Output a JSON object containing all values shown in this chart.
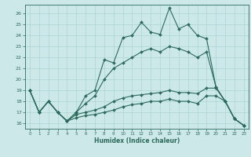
{
  "title": "",
  "xlabel": "Humidex (Indice chaleur)",
  "bg_color": "#cce8e8",
  "grid_color": "#aad4d4",
  "line_color": "#2d6b5e",
  "xlim": [
    -0.5,
    23.5
  ],
  "ylim": [
    15.5,
    26.8
  ],
  "xticks": [
    0,
    1,
    2,
    3,
    4,
    5,
    6,
    7,
    8,
    9,
    10,
    11,
    12,
    13,
    14,
    15,
    16,
    17,
    18,
    19,
    20,
    21,
    22,
    23
  ],
  "yticks": [
    16,
    17,
    18,
    19,
    20,
    21,
    22,
    23,
    24,
    25,
    26
  ],
  "line1_x": [
    0,
    1,
    2,
    3,
    4,
    5,
    6,
    7,
    8,
    9,
    10,
    11,
    12,
    13,
    14,
    15,
    16,
    17,
    18,
    19,
    20,
    21,
    22,
    23
  ],
  "line1_y": [
    19,
    17,
    18,
    17,
    16.2,
    17,
    18.5,
    19.0,
    21.8,
    21.5,
    23.8,
    24.0,
    25.2,
    24.3,
    24.1,
    26.5,
    24.6,
    25.0,
    24.0,
    23.7,
    19.3,
    18.0,
    16.4,
    15.8
  ],
  "line2_x": [
    0,
    1,
    2,
    3,
    4,
    5,
    6,
    7,
    8,
    9,
    10,
    11,
    12,
    13,
    14,
    15,
    16,
    17,
    18,
    19,
    20,
    21,
    22,
    23
  ],
  "line2_y": [
    19,
    17,
    18,
    17,
    16.2,
    16.8,
    17.0,
    17.2,
    17.5,
    18.0,
    18.3,
    18.5,
    18.6,
    18.7,
    18.8,
    19.0,
    18.8,
    18.8,
    18.7,
    19.2,
    19.2,
    18.0,
    16.4,
    15.8
  ],
  "line3_x": [
    0,
    1,
    2,
    3,
    4,
    5,
    6,
    7,
    8,
    9,
    10,
    11,
    12,
    13,
    14,
    15,
    16,
    17,
    18,
    19,
    20,
    21,
    22,
    23
  ],
  "line3_y": [
    19,
    17,
    18,
    17,
    16.2,
    16.5,
    16.7,
    16.8,
    17.0,
    17.2,
    17.5,
    17.7,
    17.8,
    18.0,
    18.0,
    18.2,
    18.0,
    18.0,
    17.8,
    18.5,
    18.5,
    18.0,
    16.4,
    15.8
  ],
  "line4_x": [
    0,
    1,
    2,
    3,
    4,
    5,
    6,
    7,
    8,
    9,
    10,
    11,
    12,
    13,
    14,
    15,
    16,
    17,
    18,
    19,
    20,
    21,
    22,
    23
  ],
  "line4_y": [
    19,
    17,
    18,
    17,
    16.2,
    17,
    17.8,
    18.5,
    20.0,
    21.0,
    21.5,
    22.0,
    22.5,
    22.8,
    22.5,
    23.0,
    22.8,
    22.5,
    22.0,
    22.5,
    19.3,
    18.0,
    16.4,
    15.8
  ]
}
